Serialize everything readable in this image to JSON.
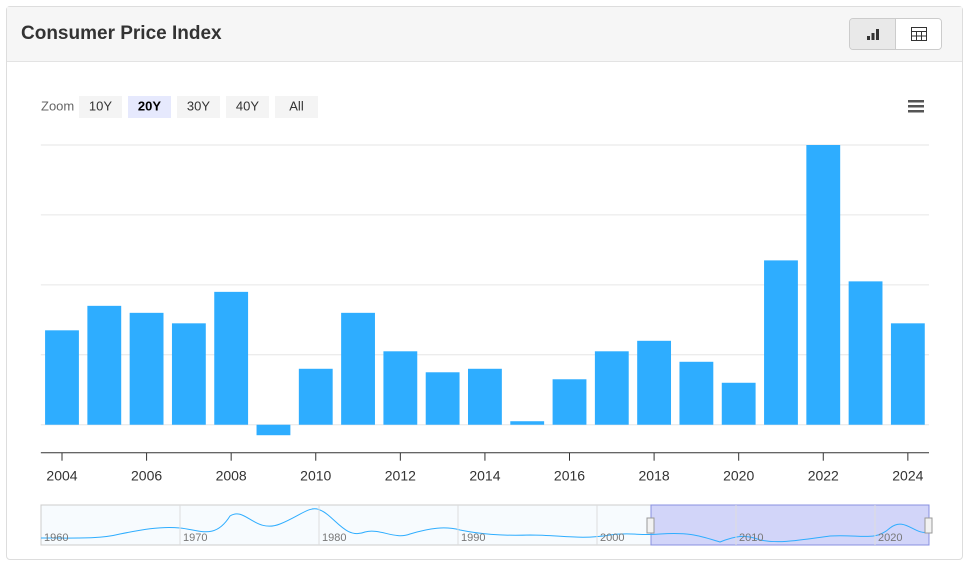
{
  "header": {
    "title": "Consumer Price Index"
  },
  "zoom": {
    "label": "Zoom",
    "options": [
      "10Y",
      "20Y",
      "30Y",
      "40Y",
      "All"
    ],
    "selected": 1
  },
  "navigator": {
    "labels": [
      "1960",
      "1970",
      "1980",
      "1990",
      "2000",
      "2010",
      "2020"
    ]
  },
  "chart_data": {
    "type": "bar",
    "color": "#2eadff",
    "categories": [
      "2004",
      null,
      "2006",
      null,
      "2008",
      null,
      "2010",
      null,
      "2012",
      null,
      "2014",
      null,
      "2016",
      null,
      "2018",
      null,
      "2020",
      null,
      "2022",
      null,
      "2024"
    ],
    "values": [
      2.7,
      3.4,
      3.2,
      2.9,
      3.8,
      -0.3,
      1.6,
      3.2,
      2.1,
      1.5,
      1.6,
      0.1,
      1.3,
      2.1,
      2.4,
      1.8,
      1.2,
      4.7,
      8.0,
      4.1,
      2.9
    ],
    "ylim": [
      -0.8,
      8
    ],
    "ygrid": [
      0,
      2,
      4,
      6,
      8
    ],
    "grid": true
  }
}
